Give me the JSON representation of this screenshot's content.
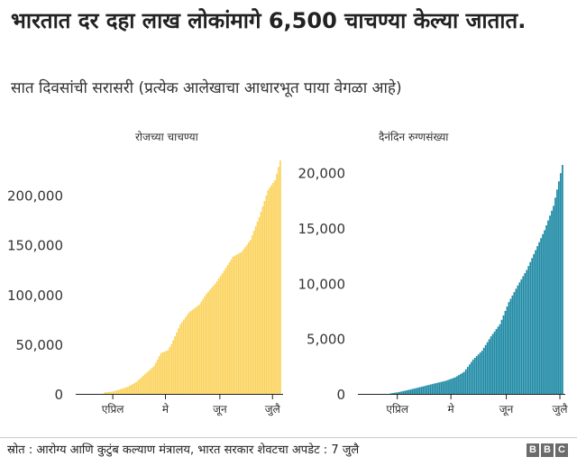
{
  "header": {
    "title": "भारतात दर दहा लाख लोकांमागे 6,500 चाचण्या केल्या जातात.",
    "subtitle": "सात दिवसांची सरासरी (प्रत्येक आलेखाचा आधारभूत पाया वेगळा आहे)"
  },
  "footer": {
    "source": "स्रोत : आरोग्य आणि कुटुंब कल्याण मंत्रालय, भारत सरकार शेवटचा अपडेट : 7 जुलै",
    "logo_letters": [
      "B",
      "B",
      "C"
    ]
  },
  "colors": {
    "tests": "#fbd35d",
    "cases": "#1d89a4",
    "axis": "#222222",
    "text": "#333333"
  },
  "chart_data": [
    {
      "type": "bar",
      "title": "रोजच्या चाचण्या",
      "x_tick_labels": [
        "एप्रिल",
        "मे",
        "जून",
        "जुलै"
      ],
      "x_tick_indices": [
        17,
        47,
        78,
        108
      ],
      "ylim": [
        0,
        235000
      ],
      "y_ticks": [
        0,
        50000,
        100000,
        150000,
        200000
      ],
      "y_tick_labels": [
        "0",
        "50,000",
        "100,000",
        "150,000",
        "200,000"
      ],
      "grid": false,
      "anchors": [
        [
          12,
          1500
        ],
        [
          17,
          2500
        ],
        [
          25,
          7000
        ],
        [
          30,
          12000
        ],
        [
          40,
          28000
        ],
        [
          44,
          41000
        ],
        [
          48,
          44000
        ],
        [
          50,
          50000
        ],
        [
          55,
          70000
        ],
        [
          60,
          82000
        ],
        [
          66,
          90000
        ],
        [
          70,
          101000
        ],
        [
          75,
          111000
        ],
        [
          80,
          124000
        ],
        [
          85,
          138000
        ],
        [
          90,
          143000
        ],
        [
          95,
          155000
        ],
        [
          100,
          178000
        ],
        [
          105,
          205000
        ],
        [
          109,
          215000
        ],
        [
          112,
          235000
        ]
      ],
      "bar_count": 113
    },
    {
      "type": "bar",
      "title": "दैनंदिन रुग्णसंख्या",
      "x_tick_labels": [
        "एप्रिल",
        "मे",
        "जून",
        "जुलै"
      ],
      "x_tick_indices": [
        18,
        48,
        79,
        109
      ],
      "ylim": [
        0,
        20700
      ],
      "y_ticks": [
        0,
        5000,
        10000,
        15000,
        20000
      ],
      "y_tick_labels": [
        "0",
        "5,000",
        "10,000",
        "15,000",
        "20,000"
      ],
      "grid": false,
      "anchors": [
        [
          14,
          50
        ],
        [
          18,
          150
        ],
        [
          25,
          400
        ],
        [
          35,
          800
        ],
        [
          45,
          1200
        ],
        [
          50,
          1500
        ],
        [
          55,
          2000
        ],
        [
          60,
          3100
        ],
        [
          65,
          3900
        ],
        [
          70,
          5200
        ],
        [
          75,
          6300
        ],
        [
          80,
          8300
        ],
        [
          85,
          9800
        ],
        [
          90,
          11200
        ],
        [
          95,
          13000
        ],
        [
          100,
          14800
        ],
        [
          105,
          17000
        ],
        [
          110,
          20700
        ]
      ],
      "bar_count": 111
    }
  ]
}
